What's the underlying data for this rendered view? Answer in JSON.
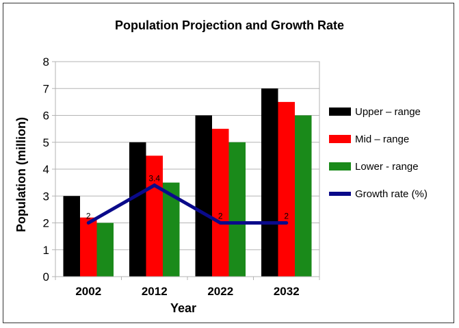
{
  "chart_data": {
    "type": "bar",
    "title": "Population Projection and Growth Rate",
    "xlabel": "Year",
    "ylabel": "Population (million)",
    "ylim": [
      0,
      8
    ],
    "yticks": [
      0,
      1,
      2,
      3,
      4,
      5,
      6,
      7,
      8
    ],
    "grid": true,
    "legend_position": "right",
    "categories": [
      "2002",
      "2012",
      "2022",
      "2032"
    ],
    "series": [
      {
        "name": "Upper – range",
        "type": "bar",
        "color": "#000000",
        "values": [
          3,
          5,
          6,
          7
        ]
      },
      {
        "name": "Mid – range",
        "type": "bar",
        "color": "#ff0000",
        "values": [
          2.2,
          4.5,
          5.5,
          6.5
        ]
      },
      {
        "name": "Lower - range",
        "type": "bar",
        "color": "#1a8a1a",
        "values": [
          2,
          3.5,
          5,
          6
        ]
      },
      {
        "name": "Growth rate (%)",
        "type": "line",
        "color": "#0a0a8a",
        "values": [
          2,
          3.4,
          2,
          2
        ],
        "data_labels": [
          "2",
          "3.4",
          "2",
          "2"
        ]
      }
    ]
  }
}
